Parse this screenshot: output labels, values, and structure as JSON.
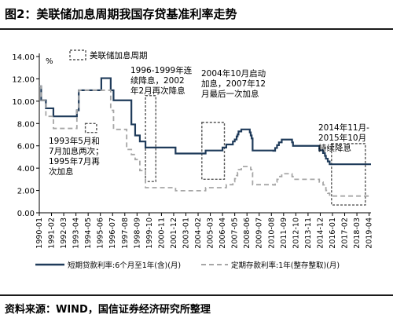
{
  "figure": {
    "title": "图2：美联储加息周期我国存贷基准利率走势",
    "source": "资料来源：WIND，国信证券经济研究所整理"
  },
  "chart_data": {
    "type": "line",
    "title": "",
    "xlabel": "",
    "ylabel": "%",
    "ylim": [
      0,
      14
    ],
    "yticks": [
      "0.00",
      "2.00",
      "4.00",
      "6.00",
      "8.00",
      "10.00",
      "12.00",
      "14.00"
    ],
    "xticks": [
      "1990-01",
      "1991-02",
      "1992-03",
      "1993-04",
      "1994-05",
      "1995-06",
      "1996-07",
      "1997-08",
      "1998-09",
      "1999-10",
      "2000-11",
      "2001-12",
      "2003-01",
      "2004-02",
      "2005-03",
      "2006-04",
      "2007-05",
      "2008-06",
      "2009-07",
      "2010-08",
      "2011-09",
      "2012-10",
      "2013-11",
      "2014-12",
      "2016-01",
      "2017-02",
      "2018-03",
      "2019-04"
    ],
    "xlim": [
      "1990-01",
      "2019-06"
    ],
    "legend_box_label": "美联储加息周期",
    "series": [
      {
        "name": "短期贷款利率:6个月至1年(含)(月)",
        "color": "#1f3b5a",
        "dash": false,
        "x": [
          "1990-01",
          "1990-03",
          "1990-08",
          "1991-04",
          "1993-05",
          "1993-07",
          "1995-01",
          "1995-07",
          "1996-05",
          "1996-08",
          "1997-10",
          "1998-03",
          "1998-07",
          "1998-12",
          "1999-06",
          "2002-02",
          "2004-10",
          "2006-04",
          "2006-08",
          "2007-03",
          "2007-05",
          "2007-07",
          "2007-08",
          "2007-09",
          "2007-12",
          "2008-09",
          "2008-10",
          "2008-11",
          "2008-12",
          "2010-10",
          "2010-12",
          "2011-02",
          "2011-04",
          "2011-07",
          "2012-06",
          "2012-07",
          "2014-11",
          "2015-03",
          "2015-05",
          "2015-06",
          "2015-08",
          "2015-10",
          "2019-06"
        ],
        "y": [
          11.34,
          10.08,
          9.36,
          8.64,
          9.18,
          10.98,
          10.98,
          12.06,
          10.98,
          10.08,
          10.08,
          7.92,
          6.93,
          6.39,
          5.85,
          5.31,
          5.58,
          5.85,
          6.12,
          6.39,
          6.57,
          6.84,
          7.02,
          7.29,
          7.47,
          7.2,
          6.93,
          6.66,
          5.58,
          5.56,
          5.81,
          6.06,
          6.31,
          6.56,
          6.31,
          6.0,
          5.6,
          5.35,
          5.1,
          4.85,
          4.6,
          4.35,
          4.35
        ]
      },
      {
        "name": "定期存款利率:1年(整存整取)(月)",
        "color": "#a6a6a6",
        "dash": true,
        "x": [
          "1990-01",
          "1990-03",
          "1990-08",
          "1991-04",
          "1993-05",
          "1993-07",
          "1996-05",
          "1996-08",
          "1997-10",
          "1998-03",
          "1998-07",
          "1998-12",
          "1999-06",
          "2002-02",
          "2004-10",
          "2006-08",
          "2007-03",
          "2007-05",
          "2007-07",
          "2007-08",
          "2007-09",
          "2007-12",
          "2008-10",
          "2008-11",
          "2008-12",
          "2010-10",
          "2010-12",
          "2011-02",
          "2011-04",
          "2011-07",
          "2012-06",
          "2012-07",
          "2014-11",
          "2015-03",
          "2015-05",
          "2015-06",
          "2015-08",
          "2015-10",
          "2019-06"
        ],
        "y": [
          11.34,
          10.08,
          8.64,
          7.56,
          9.18,
          10.98,
          9.18,
          7.47,
          5.67,
          5.22,
          4.77,
          3.78,
          2.25,
          1.98,
          2.25,
          2.52,
          2.79,
          3.06,
          3.33,
          3.6,
          3.87,
          4.14,
          3.87,
          3.6,
          2.52,
          2.5,
          2.75,
          3.0,
          3.25,
          3.5,
          3.25,
          3.0,
          2.75,
          2.5,
          2.25,
          2.0,
          1.75,
          1.5,
          1.5
        ]
      }
    ],
    "hike_cycles": [
      {
        "start": "1994-02",
        "end": "1995-02"
      },
      {
        "start": "1999-06",
        "end": "2000-05"
      },
      {
        "start": "2004-06",
        "end": "2006-06"
      },
      {
        "start": "2015-12",
        "end": "2018-12"
      }
    ],
    "annotations": [
      {
        "lines": [
          "1993年5月和",
          "7月加息两次；",
          "1995年7月再",
          "次加息"
        ]
      },
      {
        "lines": [
          "1996-1999年连",
          "续降息，2002",
          "年2月再次降息"
        ]
      },
      {
        "lines": [
          "2004年10月启动",
          "加息，2007年12",
          "月最后一次加息"
        ]
      },
      {
        "lines": [
          "2014年11月-",
          "2015年10月",
          "持续降息"
        ]
      }
    ]
  }
}
